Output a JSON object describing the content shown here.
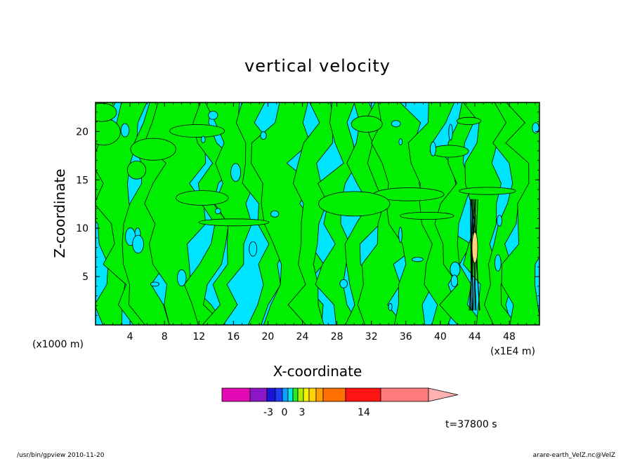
{
  "chart_data": {
    "type": "heatmap",
    "title": "vertical velocity",
    "xlabel": "X-coordinate",
    "ylabel": "Z-coordinate",
    "x_unit": "(x1000 m)",
    "x_scale_note": "(x1E4 m)",
    "x_range": [
      0,
      51.5
    ],
    "y_range": [
      0,
      23
    ],
    "x_ticks": [
      "4",
      "8",
      "12",
      "16",
      "20",
      "24",
      "28",
      "32",
      "36",
      "40",
      "44",
      "48"
    ],
    "y_ticks": [
      "5",
      "10",
      "15",
      "20"
    ],
    "colors": {
      "negative": "#00e5ff",
      "positive": "#00ee00",
      "strong_positive": "#ffd27f",
      "contour": "#000000"
    },
    "colorbar": {
      "colors": [
        "#e20ab4",
        "#8a16c8",
        "#1a14d6",
        "#1e3cf2",
        "#0aa0ff",
        "#00e8e8",
        "#22ee22",
        "#aaf000",
        "#f4f000",
        "#ffd200",
        "#ffa000",
        "#ff7000",
        "#ff1414",
        "#ff7a7a",
        "#ffb0b0"
      ],
      "tick_labels": [
        "-3",
        "0",
        "3",
        "14"
      ]
    },
    "time_label": "t=37800 s",
    "footer_left": "/usr/bin/gpview  2010-11-20",
    "footer_right": "arare-earth_VelZ.nc@VelZ"
  }
}
